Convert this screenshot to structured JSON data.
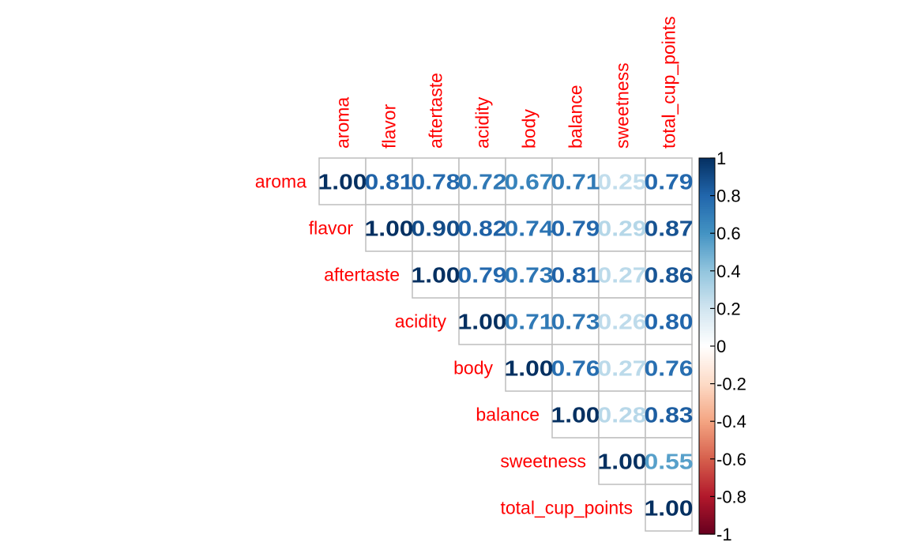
{
  "chart_data": {
    "type": "heatmap",
    "variables": [
      "aroma",
      "flavor",
      "aftertaste",
      "acidity",
      "body",
      "balance",
      "sweetness",
      "total_cup_points"
    ],
    "matrix_type": "upper-triangle",
    "values": [
      [
        1.0,
        0.81,
        0.78,
        0.72,
        0.67,
        0.71,
        0.25,
        0.79
      ],
      [
        null,
        1.0,
        0.9,
        0.82,
        0.74,
        0.79,
        0.29,
        0.87
      ],
      [
        null,
        null,
        1.0,
        0.79,
        0.73,
        0.81,
        0.27,
        0.86
      ],
      [
        null,
        null,
        null,
        1.0,
        0.71,
        0.73,
        0.26,
        0.8
      ],
      [
        null,
        null,
        null,
        null,
        1.0,
        0.76,
        0.27,
        0.76
      ],
      [
        null,
        null,
        null,
        null,
        null,
        1.0,
        0.28,
        0.83
      ],
      [
        null,
        null,
        null,
        null,
        null,
        null,
        1.0,
        0.55
      ],
      [
        null,
        null,
        null,
        null,
        null,
        null,
        null,
        1.0
      ]
    ],
    "labels": [
      [
        "1.00",
        "0.81",
        "0.78",
        "0.72",
        "0.67",
        "0.71",
        "0.25",
        "0.79"
      ],
      [
        "",
        "1.00",
        "0.90",
        "0.82",
        "0.74",
        "0.79",
        "0.29",
        "0.87"
      ],
      [
        "",
        "",
        "1.00",
        "0.79",
        "0.73",
        "0.81",
        "0.27",
        "0.86"
      ],
      [
        "",
        "",
        "",
        "1.00",
        "0.71",
        "0.73",
        "0.26",
        "0.80"
      ],
      [
        "",
        "",
        "",
        "",
        "1.00",
        "0.76",
        "0.27",
        "0.76"
      ],
      [
        "",
        "",
        "",
        "",
        "",
        "1.00",
        "0.28",
        "0.83"
      ],
      [
        "",
        "",
        "",
        "",
        "",
        "",
        "1.00",
        "0.55"
      ],
      [
        "",
        "",
        "",
        "",
        "",
        "",
        "",
        "1.00"
      ]
    ],
    "colorbar": {
      "range": [
        -1,
        1
      ],
      "ticks": [
        "1",
        "0.8",
        "0.6",
        "0.4",
        "0.2",
        "0",
        "-0.2",
        "-0.4",
        "-0.6",
        "-0.8",
        "-1"
      ],
      "tick_values": [
        1,
        0.8,
        0.6,
        0.4,
        0.2,
        0,
        -0.2,
        -0.4,
        -0.6,
        -0.8,
        -1
      ]
    },
    "label_color": "#ff0000",
    "grid_color": "#bebebe",
    "palette": [
      "#67001f",
      "#b2182b",
      "#d6604d",
      "#f4a582",
      "#fddbc7",
      "#ffffff",
      "#d1e5f0",
      "#92c5de",
      "#4393c3",
      "#2166ac",
      "#053061"
    ]
  }
}
